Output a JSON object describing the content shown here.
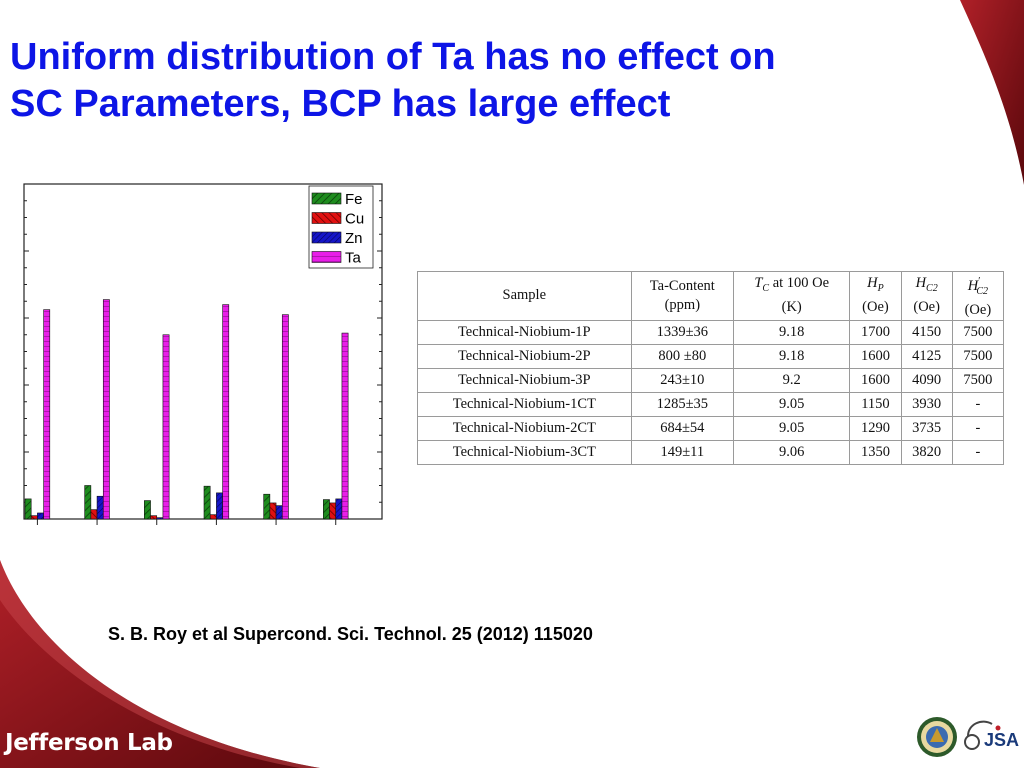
{
  "slide": {
    "title_line1": "Uniform distribution of Ta has no effect on",
    "title_line2": "SC Parameters, BCP has large effect",
    "citation": "S. B. Roy et al Supercond. Sci. Technol.  25 (2012) 115020",
    "footer_logo": "Jefferson Lab",
    "partner_logo": "JSA"
  },
  "chart_data": {
    "type": "bar",
    "title": "",
    "xlabel": "",
    "ylabel": "",
    "categories": [
      "",
      "",
      "",
      "",
      "",
      ""
    ],
    "ylim": [
      0,
      100
    ],
    "legend_position": "top-right",
    "series": [
      {
        "name": "Fe",
        "color": "#1e8c1e",
        "values": [
          6,
          10,
          5.5,
          9.8,
          7.4,
          5.8
        ]
      },
      {
        "name": "Cu",
        "color": "#e01010",
        "values": [
          1,
          2.8,
          1,
          1.3,
          4.8,
          4.8
        ]
      },
      {
        "name": "Zn",
        "color": "#1515c8",
        "values": [
          1.8,
          6.8,
          0.4,
          7.8,
          4,
          6
        ]
      },
      {
        "name": "Ta",
        "color": "#e81ee8",
        "values": [
          62.5,
          65.5,
          55,
          64,
          61,
          55.5
        ]
      }
    ]
  },
  "table": {
    "headers": [
      {
        "line1": "Sample",
        "line2": ""
      },
      {
        "line1": "Ta-Content",
        "line2": "(ppm)"
      },
      {
        "line1": "T_C at 100 Oe",
        "line2": "(K)"
      },
      {
        "line1": "H_P",
        "line2": "(Oe)"
      },
      {
        "line1": "H_C2",
        "line2": "(Oe)"
      },
      {
        "line1": "H'_C2",
        "line2": "(Oe)"
      }
    ],
    "rows": [
      [
        "Technical-Niobium-1P",
        "1339±36",
        "9.18",
        "1700",
        "4150",
        "7500"
      ],
      [
        "Technical-Niobium-2P",
        "800 ±80",
        "9.18",
        "1600",
        "4125",
        "7500"
      ],
      [
        "Technical-Niobium-3P",
        "243±10",
        "9.2",
        "1600",
        "4090",
        "7500"
      ],
      [
        "Technical-Niobium-1CT",
        "1285±35",
        "9.05",
        "1150",
        "3930",
        "-"
      ],
      [
        "Technical-Niobium-2CT",
        "684±54",
        "9.05",
        "1290",
        "3735",
        "-"
      ],
      [
        "Technical-Niobium-3CT",
        "149±11",
        "9.06",
        "1350",
        "3820",
        "-"
      ]
    ]
  },
  "colors": {
    "title": "#0d15e6",
    "swoosh_dark": "#6a0c10",
    "swoosh_light": "#a81e24"
  }
}
